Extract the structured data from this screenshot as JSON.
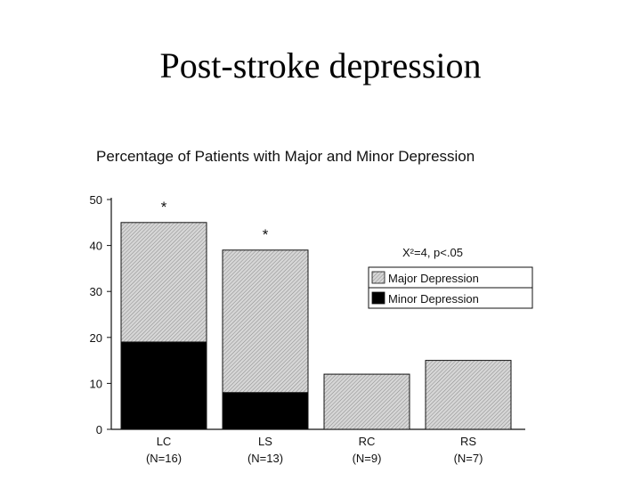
{
  "slide": {
    "title": "Post-stroke depression"
  },
  "chart_data": {
    "type": "bar",
    "stacked": true,
    "title": "Percentage of Patients with Major and Minor Depression",
    "categories": [
      "LC",
      "LS",
      "RC",
      "RS"
    ],
    "category_sublabels": [
      "(N=16)",
      "(N=13)",
      "(N=9)",
      "(N=7)"
    ],
    "series": [
      {
        "name": "Minor Depression",
        "values": [
          19,
          8,
          0,
          0
        ],
        "color": "#000000"
      },
      {
        "name": "Major Depression",
        "values": [
          26,
          31,
          12,
          15
        ],
        "color": "#c8c8c8"
      }
    ],
    "ylim": [
      0,
      50
    ],
    "yticks": [
      0,
      10,
      20,
      30,
      40,
      50
    ],
    "significance_marks": [
      "*",
      "*",
      "",
      ""
    ],
    "annotation": "X²=4, p<.05",
    "legend_position": "right",
    "legend_order": [
      "Major Depression",
      "Minor Depression"
    ],
    "grid": false
  }
}
